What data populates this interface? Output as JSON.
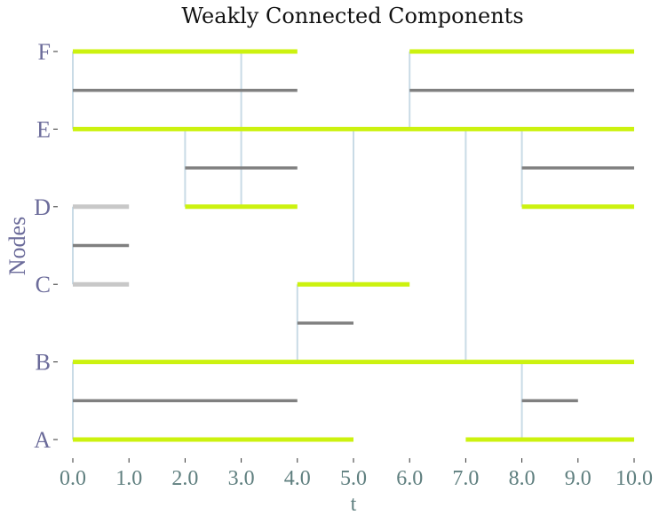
{
  "chart_data": {
    "type": "timeline",
    "title": "Weakly Connected Components",
    "xlabel": "t",
    "ylabel": "Nodes",
    "xlim": [
      0,
      10
    ],
    "xticks": [
      "0.0",
      "1.0",
      "2.0",
      "3.0",
      "4.0",
      "5.0",
      "6.0",
      "7.0",
      "8.0",
      "9.0",
      "10.0"
    ],
    "nodes": [
      "A",
      "B",
      "C",
      "D",
      "E",
      "F"
    ],
    "colors": {
      "active": "#ccf20f",
      "inactive": "#c8c8c8",
      "link": "#808080",
      "connector": "#c9dbe6",
      "tick_x": "#5f7f7f",
      "tick_y": "#6b6b9a"
    },
    "node_segments": [
      {
        "node": "A",
        "start": 0,
        "end": 5,
        "style": "active"
      },
      {
        "node": "A",
        "start": 7,
        "end": 10,
        "style": "active"
      },
      {
        "node": "B",
        "start": 0,
        "end": 10,
        "style": "active"
      },
      {
        "node": "C",
        "start": 0,
        "end": 1,
        "style": "inactive"
      },
      {
        "node": "C",
        "start": 4,
        "end": 6,
        "style": "active"
      },
      {
        "node": "D",
        "start": 0,
        "end": 1,
        "style": "inactive"
      },
      {
        "node": "D",
        "start": 2,
        "end": 4,
        "style": "active"
      },
      {
        "node": "D",
        "start": 8,
        "end": 10,
        "style": "active"
      },
      {
        "node": "E",
        "start": 0,
        "end": 10,
        "style": "active"
      },
      {
        "node": "F",
        "start": 0,
        "end": 4,
        "style": "active"
      },
      {
        "node": "F",
        "start": 6,
        "end": 10,
        "style": "active"
      }
    ],
    "links": [
      {
        "source": "A",
        "target": "B",
        "start": 0,
        "end": 4
      },
      {
        "source": "A",
        "target": "B",
        "start": 8,
        "end": 9
      },
      {
        "source": "B",
        "target": "C",
        "start": 4,
        "end": 5
      },
      {
        "source": "C",
        "target": "D",
        "start": 0,
        "end": 1
      },
      {
        "source": "D",
        "target": "E",
        "start": 2,
        "end": 4
      },
      {
        "source": "D",
        "target": "E",
        "start": 8,
        "end": 10
      },
      {
        "source": "E",
        "target": "F",
        "start": 0,
        "end": 4
      },
      {
        "source": "E",
        "target": "F",
        "start": 6,
        "end": 10
      },
      {
        "source": "D",
        "target": "F",
        "start": 3,
        "end": 4
      }
    ],
    "connectors": [
      {
        "t": 0,
        "from": "A",
        "to": "B"
      },
      {
        "t": 0,
        "from": "C",
        "to": "D"
      },
      {
        "t": 0,
        "from": "E",
        "to": "F"
      },
      {
        "t": 2,
        "from": "D",
        "to": "E"
      },
      {
        "t": 3,
        "from": "D",
        "to": "F"
      },
      {
        "t": 4,
        "from": "B",
        "to": "C"
      },
      {
        "t": 5,
        "from": "C",
        "to": "E"
      },
      {
        "t": 6,
        "from": "E",
        "to": "F"
      },
      {
        "t": 7,
        "from": "B",
        "to": "E"
      },
      {
        "t": 8,
        "from": "A",
        "to": "B"
      },
      {
        "t": 8,
        "from": "D",
        "to": "E"
      }
    ]
  }
}
